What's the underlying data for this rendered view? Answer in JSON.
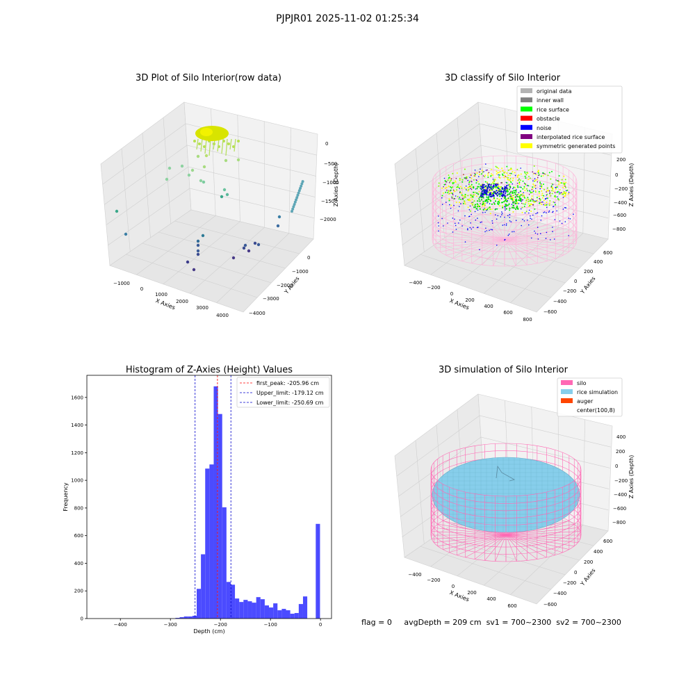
{
  "suptitle": "PJPJR01 2025-11-02 01:25:34",
  "footer": {
    "flag": "flag = 0",
    "avg": "avgDepth = 209 cm",
    "sv1": "sv1 = 700~2300",
    "sv2": "sv2 = 700~2300"
  },
  "colors": {
    "hist": "#4b4bff",
    "peak": "#ff0000",
    "limit": "#0000cc",
    "silo": "#ff69b4",
    "rice": "#87ceeb",
    "auger": "#ff4500"
  },
  "chart_data": [
    {
      "type": "scatter",
      "title": "3D Plot of Silo Interior(row data)",
      "xlabel": "X Axies",
      "ylabel": "Y Axies",
      "zlabel": "Z Axies (Depth)",
      "xticks": [
        "−1000",
        "0",
        "1000",
        "2000",
        "3000",
        "4000"
      ],
      "yticks": [
        "0",
        "−1000",
        "−2000",
        "−3000",
        "−4000"
      ],
      "zticks": [
        "0",
        "−500",
        "−1000",
        "−1500",
        "−2000"
      ]
    },
    {
      "type": "scatter",
      "title": "3D classify of Silo Interior",
      "xlabel": "X Axies",
      "ylabel": "Y Axies",
      "zlabel": "Z Axies (Depth)",
      "xticks": [
        "−400",
        "−200",
        "0",
        "200",
        "400",
        "600",
        "800"
      ],
      "yticks": [
        "600",
        "400",
        "200",
        "0",
        "−200",
        "−400",
        "−600"
      ],
      "zticks": [
        "200",
        "0",
        "−200",
        "−400",
        "−600",
        "−800"
      ],
      "legend": [
        {
          "label": "original data",
          "color": "#b3b3b3"
        },
        {
          "label": "inner wall",
          "color": "#808080"
        },
        {
          "label": "rice surface",
          "color": "#00ff00"
        },
        {
          "label": "obstacle",
          "color": "#ff0000"
        },
        {
          "label": "noise",
          "color": "#0000ff"
        },
        {
          "label": "interpolated rice surface",
          "color": "#800080"
        },
        {
          "label": "symmetric generated points",
          "color": "#ffff00"
        }
      ]
    },
    {
      "type": "bar",
      "title": "Histogram of Z-Axies (Height) Values",
      "xlabel": "Depth (cm)",
      "ylabel": "Frequency",
      "xlim": [
        -467,
        22
      ],
      "ylim": [
        0,
        1760
      ],
      "xticks": [
        -400,
        -300,
        -200,
        -100,
        0
      ],
      "yticks": [
        0,
        200,
        400,
        600,
        800,
        1000,
        1200,
        1400,
        1600
      ],
      "bin_edges": [
        -290,
        -281.5,
        -273,
        -264.5,
        -256,
        -247.5,
        -239,
        -230.5,
        -222,
        -213.5,
        -205,
        -196.5,
        -188,
        -179.5,
        -171,
        -162.5,
        -154,
        -145.5,
        -137,
        -128.5,
        -120,
        -111.5,
        -103,
        -94.5,
        -86,
        -77.5,
        -69,
        -60.5,
        -52,
        -43.5,
        -35,
        -26.5,
        -18,
        -9.5,
        -1
      ],
      "counts": [
        5,
        10,
        15,
        15,
        20,
        215,
        465,
        1085,
        1115,
        1680,
        1480,
        805,
        265,
        245,
        145,
        120,
        135,
        125,
        115,
        155,
        140,
        95,
        80,
        110,
        60,
        70,
        60,
        35,
        40,
        105,
        160,
        0,
        0,
        685
      ],
      "lines": [
        {
          "label": "first_peak: -205.96 cm",
          "x": -205.96,
          "color": "#ff0000"
        },
        {
          "label": "Upper_limit: -179.12 cm",
          "x": -179.12,
          "color": "#0000cc"
        },
        {
          "label": "Lower_limit: -250.69 cm",
          "x": -250.69,
          "color": "#0000cc"
        }
      ]
    },
    {
      "type": "scatter",
      "title": "3D simulation of Silo Interior",
      "xlabel": "X Axies",
      "ylabel": "Y Axies",
      "zlabel": "Z Axies (Depth)",
      "xticks": [
        "−400",
        "−200",
        "0",
        "200",
        "400",
        "600"
      ],
      "yticks": [
        "600",
        "400",
        "200",
        "0",
        "−200",
        "−400",
        "−600"
      ],
      "zticks": [
        "400",
        "200",
        "0",
        "−200",
        "−400",
        "−600",
        "−800"
      ],
      "legend": [
        {
          "label": "silo",
          "color": "#ff69b4"
        },
        {
          "label": "rice simulation",
          "color": "#87ceeb"
        },
        {
          "label": "auger",
          "color": "#ff4500"
        },
        {
          "label": "center(100,8)",
          "color": ""
        }
      ]
    }
  ]
}
